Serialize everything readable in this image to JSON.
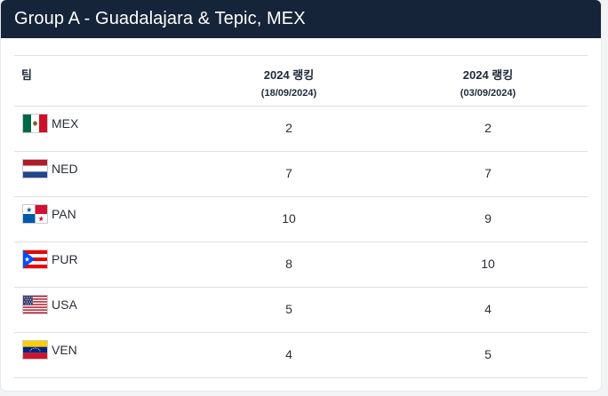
{
  "header": {
    "title": "Group A - Guadalajara & Tepic, MEX"
  },
  "table": {
    "columns": {
      "team": "팀",
      "rank1": {
        "label": "2024 랭킹",
        "date": "(18/09/2024)"
      },
      "rank2": {
        "label": "2024 랭킹",
        "date": "(03/09/2024)"
      }
    },
    "rows": [
      {
        "flag_icon": "mexico-flag-icon",
        "code": "MEX",
        "rank1": "2",
        "rank2": "2"
      },
      {
        "flag_icon": "netherlands-flag-icon",
        "code": "NED",
        "rank1": "7",
        "rank2": "7"
      },
      {
        "flag_icon": "panama-flag-icon",
        "code": "PAN",
        "rank1": "10",
        "rank2": "9"
      },
      {
        "flag_icon": "puerto-rico-flag-icon",
        "code": "PUR",
        "rank1": "8",
        "rank2": "10"
      },
      {
        "flag_icon": "usa-flag-icon",
        "code": "USA",
        "rank1": "5",
        "rank2": "4"
      },
      {
        "flag_icon": "venezuela-flag-icon",
        "code": "VEN",
        "rank1": "4",
        "rank2": "5"
      }
    ]
  }
}
